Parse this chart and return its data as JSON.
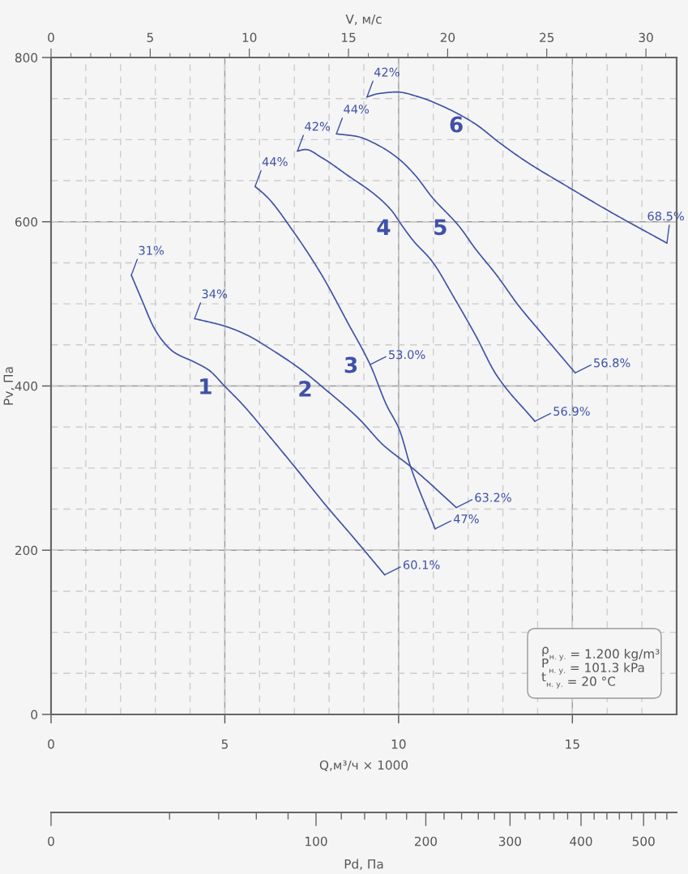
{
  "chart_data": [
    {
      "type": "line",
      "xlabel": "Q,м³/ч × 1000",
      "ylabel": "Pv, Па",
      "x2label": "V, м/с",
      "xlim": [
        0,
        18
      ],
      "xticks": [
        0,
        5,
        10,
        15
      ],
      "ylim": [
        0,
        800
      ],
      "yticks": [
        0,
        200,
        400,
        600,
        800
      ],
      "x2lim": [
        0,
        31.55
      ],
      "x2ticks": [
        0,
        5,
        10,
        15,
        20,
        25,
        30
      ],
      "grid": true,
      "line_style": "solid",
      "series": [
        {
          "name": "1",
          "color": "#3f51a8",
          "x": [
            2.31,
            2.61,
            2.96,
            3.19,
            3.54,
            4.13,
            4.55,
            4.99,
            5.52,
            6.22,
            7.04,
            7.86,
            8.79,
            9.6
          ],
          "values": [
            535,
            505,
            471,
            456,
            441,
            429,
            419,
            400,
            377,
            342,
            300,
            257,
            211,
            170
          ]
        },
        {
          "name": "2",
          "color": "#3f51a8",
          "x": [
            4.13,
            4.99,
            5.59,
            6.39,
            7.16,
            7.86,
            8.86,
            9.56,
            10.37,
            11.66
          ],
          "values": [
            482,
            473,
            463,
            443,
            421,
            397,
            360,
            328,
            301,
            252
          ]
        },
        {
          "name": "3",
          "color": "#3f51a8",
          "x": [
            5.87,
            6.22,
            6.99,
            7.79,
            8.55,
            9.18,
            9.65,
            10.02,
            10.35,
            11.05
          ],
          "values": [
            643,
            630,
            587,
            535,
            476,
            426,
            377,
            347,
            301,
            226
          ]
        },
        {
          "name": "4",
          "color": "#3f51a8",
          "x": [
            7.09,
            7.32,
            7.79,
            8.55,
            9.32,
            9.79,
            10.12,
            10.42,
            10.96,
            11.59,
            12.21,
            12.82,
            13.92
          ],
          "values": [
            686,
            688,
            678,
            656,
            633,
            614,
            594,
            577,
            552,
            508,
            462,
            413,
            357
          ]
        },
        {
          "name": "5",
          "color": "#3f51a8",
          "x": [
            8.21,
            8.79,
            9.42,
            10.02,
            10.49,
            10.96,
            11.75,
            12.21,
            12.82,
            13.45,
            14.22,
            15.08
          ],
          "values": [
            707,
            704,
            693,
            676,
            656,
            630,
            594,
            567,
            535,
            498,
            459,
            416
          ]
        },
        {
          "name": "6",
          "color": "#3f51a8",
          "x": [
            9.09,
            9.42,
            9.95,
            10.58,
            11.35,
            12.21,
            12.91,
            13.68,
            14.85,
            16.01,
            17.72
          ],
          "values": [
            752,
            756,
            758,
            752,
            739,
            719,
            696,
            673,
            643,
            614,
            574
          ]
        }
      ],
      "annotations": [
        {
          "text": "31%",
          "x": 2.31,
          "y": 535
        },
        {
          "text": "60.1%",
          "x": 9.6,
          "y": 170
        },
        {
          "text": "34%",
          "x": 4.13,
          "y": 482
        },
        {
          "text": "63.2%",
          "x": 11.66,
          "y": 252
        },
        {
          "text": "44%",
          "x": 5.87,
          "y": 643
        },
        {
          "text": "53.0%",
          "x": 9.18,
          "y": 426
        },
        {
          "text": "47%",
          "x": 11.05,
          "y": 226
        },
        {
          "text": "42%",
          "x": 7.09,
          "y": 686
        },
        {
          "text": "56.9%",
          "x": 13.92,
          "y": 357
        },
        {
          "text": "44%",
          "x": 8.21,
          "y": 707
        },
        {
          "text": "56.8%",
          "x": 15.08,
          "y": 416
        },
        {
          "text": "42%",
          "x": 9.09,
          "y": 752
        },
        {
          "text": "68.5%",
          "x": 17.72,
          "y": 574
        },
        "ρ$_{н. у.}$ = 1.200 kg/m³",
        "P$_{н. у.}$ = 101.3 kPa",
        "t$_{н. у.}$ = 20 °C"
      ]
    },
    {
      "type": "other",
      "annotations": [
        "0",
        "100",
        "200",
        "300",
        "400",
        "500",
        "Pd, Па"
      ]
    }
  ]
}
